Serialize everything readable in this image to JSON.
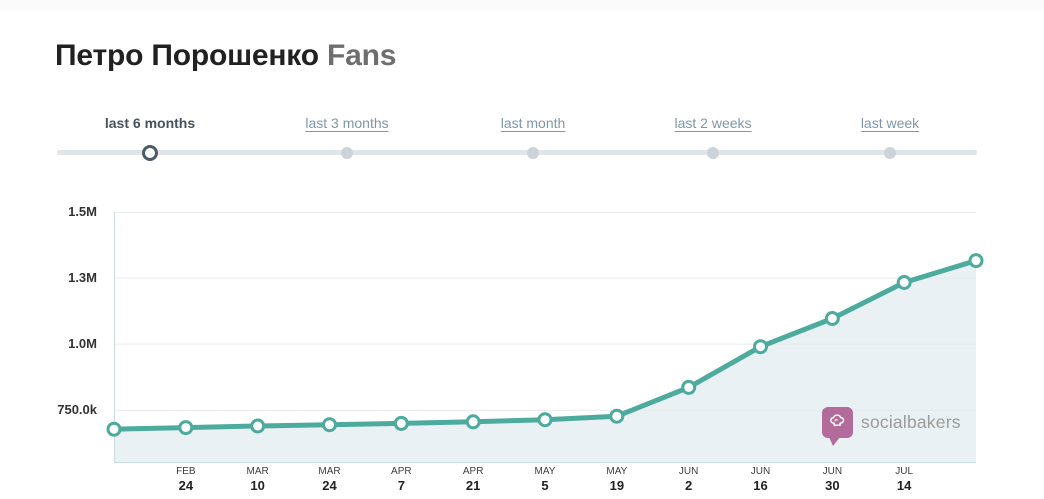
{
  "header": {
    "title_main": "Петро Порошенко",
    "title_suffix": "Fans"
  },
  "range_selector": {
    "options": [
      {
        "label": "last 6 months",
        "selected": true
      },
      {
        "label": "last 3 months",
        "selected": false
      },
      {
        "label": "last month",
        "selected": false
      },
      {
        "label": "last 2 weeks",
        "selected": false
      },
      {
        "label": "last week",
        "selected": false
      }
    ]
  },
  "watermark": {
    "brand_text": "socialbakers",
    "logo_icon": "chef-hat-speech-bubble"
  },
  "colors": {
    "line": "#4dab9e",
    "area_fill": "#e9f1f4",
    "marker_fill": "#ffffff",
    "grid": "#e7eaec",
    "plot_border": "#ccdae2",
    "logo": "#b26b9b",
    "selected_option_text": "#46525c",
    "option_link_text": "#7e97ab",
    "slider_track": "#e1e5e9",
    "slider_dot": "#cdd3d8"
  },
  "chart_data": {
    "type": "area",
    "title": "Петро Порошенко Fans",
    "series": [
      {
        "name": "Fans",
        "values": [
          678000,
          684000,
          690000,
          695000,
          700000,
          706000,
          714000,
          727000,
          836000,
          990000,
          1097000,
          1233000,
          1316000
        ]
      }
    ],
    "x_tick_labels": [
      [
        "",
        ""
      ],
      [
        "FEB",
        "24"
      ],
      [
        "MAR",
        "10"
      ],
      [
        "MAR",
        "24"
      ],
      [
        "APR",
        "7"
      ],
      [
        "APR",
        "21"
      ],
      [
        "MAY",
        "5"
      ],
      [
        "MAY",
        "19"
      ],
      [
        "JUN",
        "2"
      ],
      [
        "JUN",
        "16"
      ],
      [
        "JUN",
        "30"
      ],
      [
        "JUL",
        "14"
      ],
      [
        "",
        ""
      ]
    ],
    "y_ticks": [
      {
        "label": "1.5M",
        "value": 1500000
      },
      {
        "label": "1.3M",
        "value": 1250000
      },
      {
        "label": "1.0M",
        "value": 1000000
      },
      {
        "label": "750.0k",
        "value": 750000
      }
    ],
    "ylim": [
      550000,
      1500000
    ],
    "grid": true,
    "legend": false,
    "marker_style": "open-circle"
  }
}
